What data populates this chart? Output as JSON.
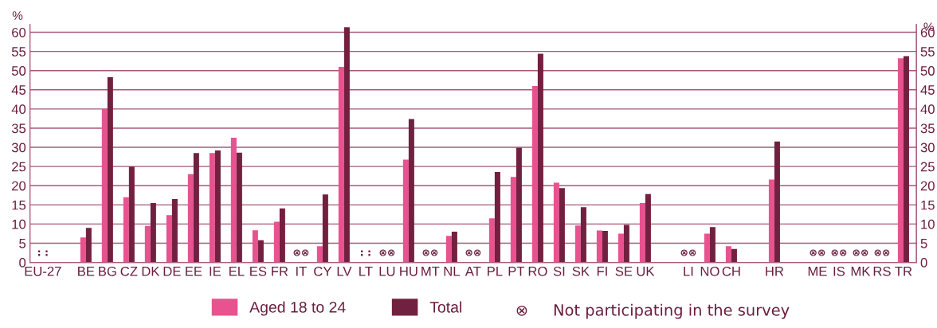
{
  "chart_data": {
    "type": "bar",
    "ylabel": "%",
    "y2label": "%",
    "categories": [
      "EU-27",
      null,
      "BE",
      "BG",
      "CZ",
      "DK",
      "DE",
      "EE",
      "IE",
      "EL",
      "ES",
      "FR",
      "IT",
      "CY",
      "LV",
      "LT",
      "LU",
      "HU",
      "MT",
      "NL",
      "AT",
      "PL",
      "PT",
      "RO",
      "SI",
      "SK",
      "FI",
      "SE",
      "UK",
      null,
      "LI",
      "NO",
      "CH",
      null,
      "HR",
      null,
      "ME",
      "IS",
      "MK",
      "RS",
      "TR"
    ],
    "series": [
      {
        "name": "Aged 18 to 24",
        "color": "#e8528f",
        "values": [
          null,
          null,
          6.5,
          40,
          17,
          9.5,
          12.3,
          23,
          28.5,
          32.5,
          8.4,
          10.6,
          null,
          4.2,
          51,
          null,
          null,
          26.8,
          null,
          6.9,
          null,
          11.5,
          22.3,
          46,
          20.8,
          9.6,
          8.3,
          7.5,
          15.5,
          null,
          null,
          7.5,
          4.2,
          null,
          21.6,
          null,
          null,
          null,
          null,
          null,
          53.2
        ]
      },
      {
        "name": "Total",
        "color": "#722040",
        "values": [
          null,
          null,
          9,
          48.3,
          25,
          15.5,
          16.5,
          28.5,
          29.2,
          28.6,
          5.8,
          14.1,
          null,
          17.7,
          61.3,
          null,
          null,
          37.4,
          null,
          8,
          null,
          23.6,
          29.9,
          54.4,
          19.4,
          14.4,
          8.2,
          9.8,
          17.8,
          null,
          null,
          9.2,
          3.5,
          null,
          31.5,
          null,
          null,
          null,
          null,
          null,
          53.8
        ]
      }
    ],
    "ylim": [
      0,
      62
    ],
    "yticks": [
      0,
      5,
      10,
      15,
      20,
      25,
      30,
      35,
      40,
      45,
      50,
      55,
      60
    ],
    "y2lim": [
      0,
      62
    ],
    "y2ticks": [
      0,
      5,
      10,
      15,
      20,
      25,
      30,
      35,
      40,
      45,
      50,
      55,
      60
    ],
    "grid": "y",
    "legend": "bottom",
    "annotations": [
      ": :",
      "⊗⊗",
      ": :",
      "⊗⊗",
      "⊗⊗",
      "⊗⊗",
      "⊗⊗",
      "⊗⊗",
      "⊗⊗",
      "⊗⊗",
      "⊗⊗",
      "⊗     Not participating in the survey"
    ]
  }
}
